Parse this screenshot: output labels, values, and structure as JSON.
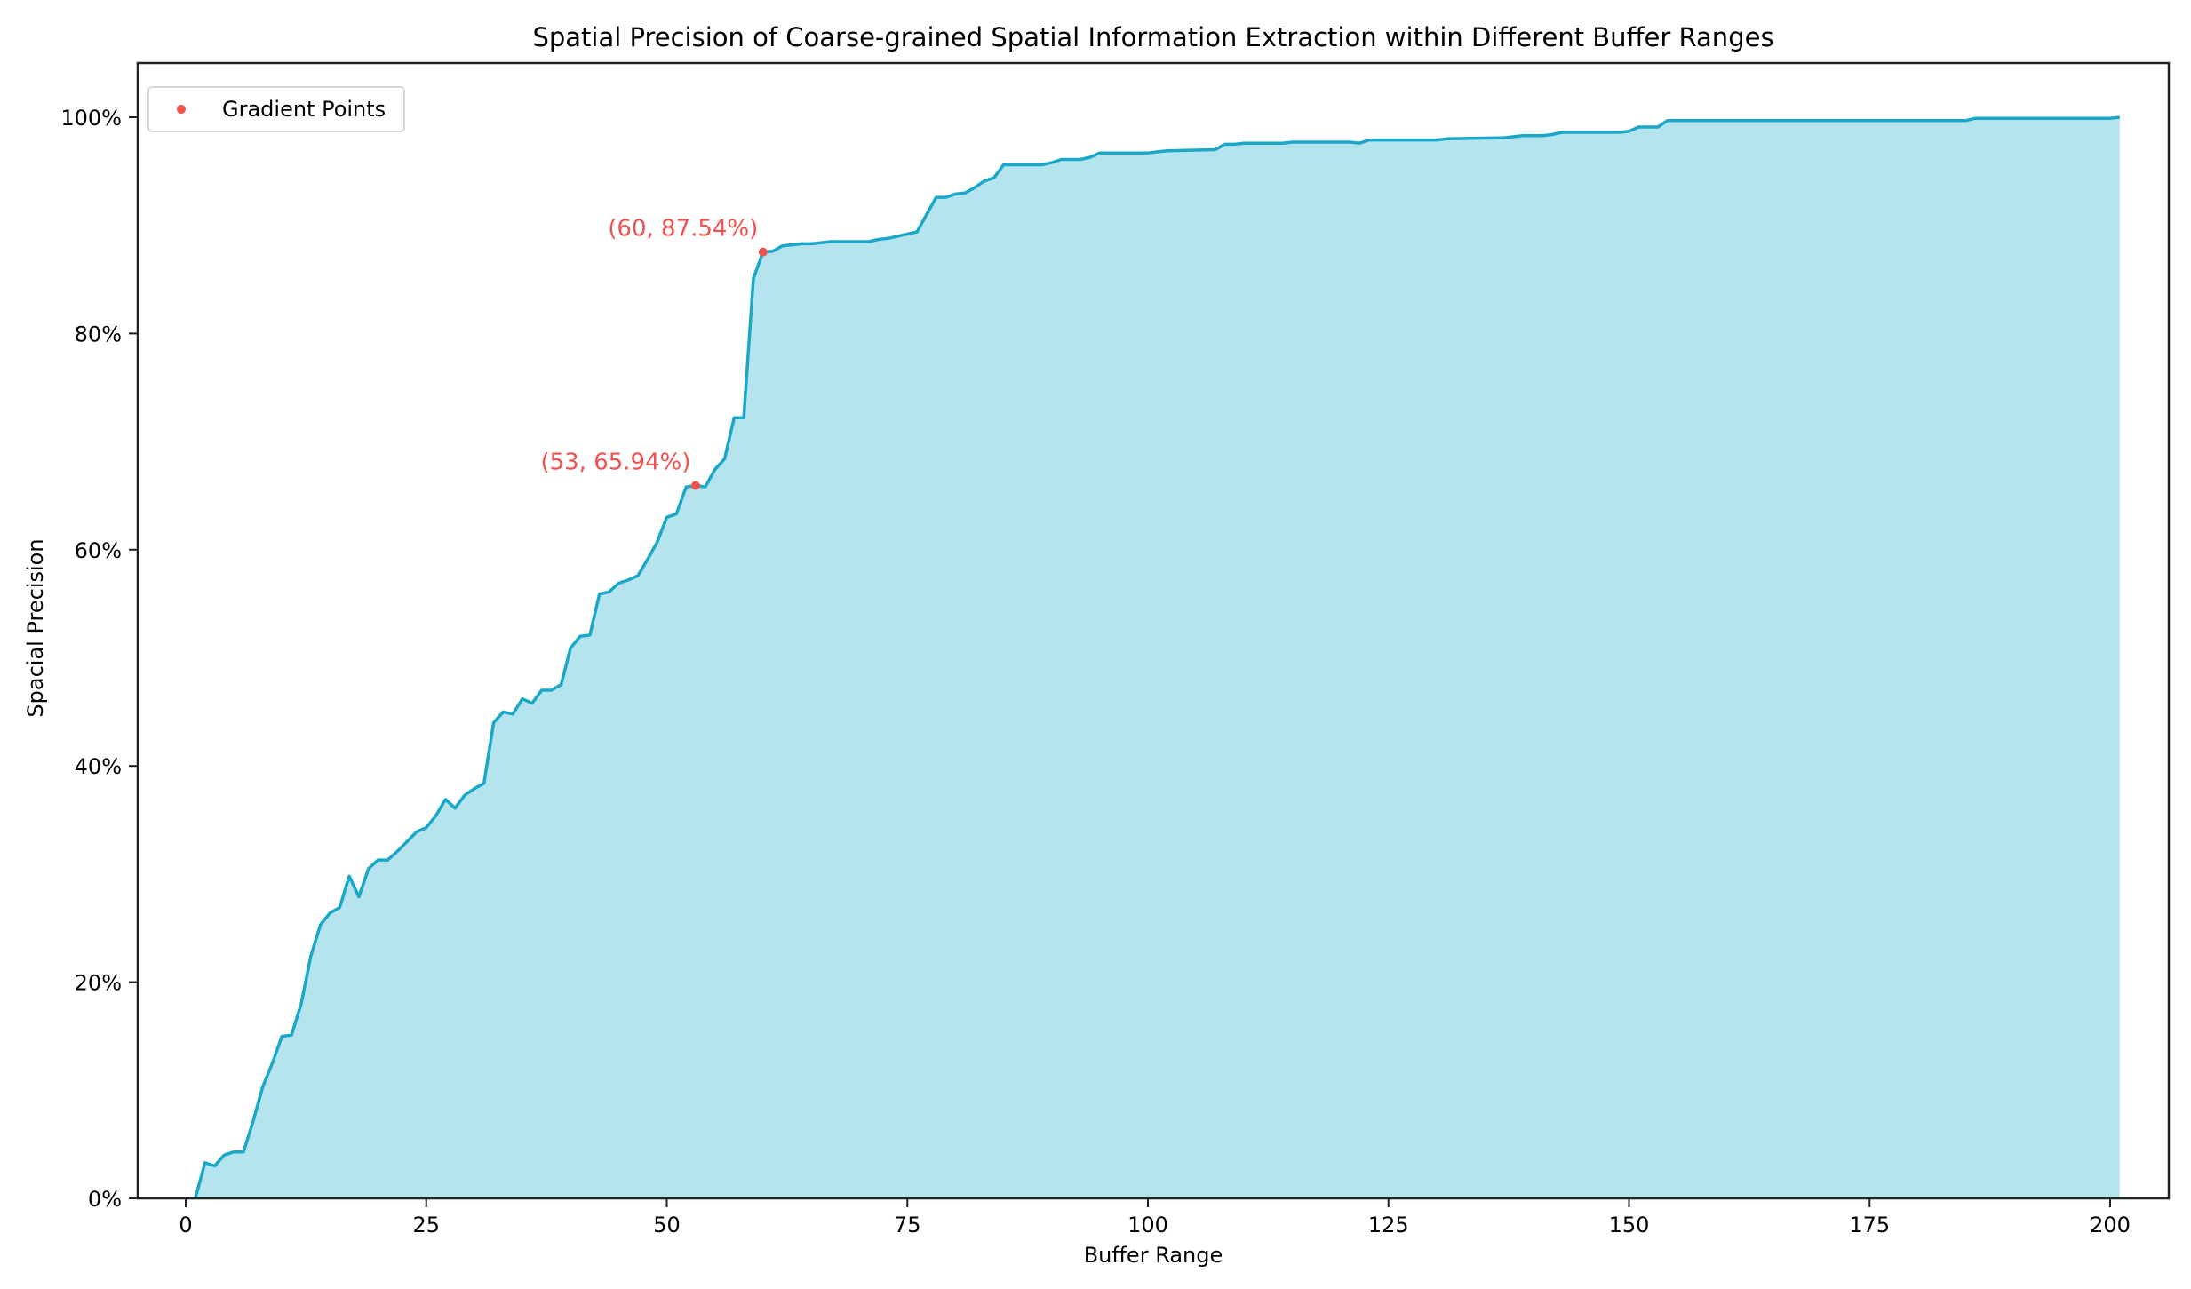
{
  "chart_data": {
    "type": "area",
    "title": "Spatial Precision of Coarse-grained Spatial Information Extraction within Different Buffer Ranges",
    "xlabel": "Buffer Range",
    "ylabel": "Spacial Precision",
    "xlim": [
      -5,
      206
    ],
    "ylim": [
      0,
      105
    ],
    "x_ticks": [
      0,
      25,
      50,
      75,
      100,
      125,
      150,
      175,
      200
    ],
    "x_tick_labels": [
      "0",
      "25",
      "50",
      "75",
      "100",
      "125",
      "150",
      "175",
      "200"
    ],
    "y_ticks": [
      0,
      20,
      40,
      60,
      80,
      100
    ],
    "y_tick_labels": [
      "0%",
      "20%",
      "40%",
      "60%",
      "80%",
      "100%"
    ],
    "grid": false,
    "legend": {
      "position": "upper left",
      "entries": [
        "Gradient Points"
      ]
    },
    "series": [
      {
        "name": "Spatial Precision",
        "x": [
          1,
          2,
          3,
          4,
          5,
          6,
          7,
          8,
          9,
          10,
          11,
          12,
          13,
          14,
          15,
          16,
          17,
          18,
          19,
          20,
          21,
          22,
          23,
          24,
          25,
          26,
          27,
          28,
          29,
          30,
          31,
          32,
          33,
          34,
          35,
          36,
          37,
          38,
          39,
          40,
          41,
          42,
          43,
          44,
          45,
          46,
          47,
          48,
          49,
          50,
          51,
          52,
          53,
          54,
          55,
          56,
          57,
          58,
          59,
          60,
          61,
          62,
          63,
          64,
          65,
          66,
          67,
          70,
          71,
          72,
          73,
          74,
          75,
          76,
          77,
          78,
          79,
          80,
          81,
          82,
          83,
          84,
          85,
          88,
          89,
          90,
          91,
          93,
          94,
          95,
          100,
          101,
          102,
          107,
          108,
          109,
          110,
          114,
          115,
          121,
          122,
          123,
          130,
          131,
          137,
          138,
          139,
          141,
          142,
          143,
          149,
          150,
          151,
          153,
          154,
          185,
          186,
          199,
          200,
          201
        ],
        "values": [
          0,
          3.3,
          3.0,
          4.0,
          4.3,
          4.3,
          7.1,
          10.3,
          12.5,
          15.0,
          15.1,
          18.0,
          22.4,
          25.3,
          26.4,
          26.9,
          29.8,
          27.9,
          30.5,
          31.3,
          31.3,
          32.1,
          33.0,
          33.9,
          34.3,
          35.4,
          36.9,
          36.1,
          37.3,
          37.9,
          38.4,
          44.0,
          45.0,
          44.8,
          46.2,
          45.8,
          47.0,
          47.0,
          47.5,
          50.9,
          52.0,
          52.1,
          55.9,
          56.1,
          56.9,
          57.2,
          57.6,
          59.1,
          60.7,
          63.0,
          63.3,
          65.8,
          65.94,
          65.8,
          67.4,
          68.4,
          72.2,
          72.2,
          85.1,
          87.54,
          87.6,
          88.1,
          88.2,
          88.3,
          88.3,
          88.4,
          88.5,
          88.5,
          88.5,
          88.7,
          88.8,
          89.0,
          89.2,
          89.4,
          91.0,
          92.6,
          92.6,
          92.9,
          93.0,
          93.5,
          94.1,
          94.4,
          95.6,
          95.6,
          95.6,
          95.8,
          96.1,
          96.1,
          96.3,
          96.7,
          96.7,
          96.8,
          96.9,
          97.0,
          97.5,
          97.5,
          97.6,
          97.6,
          97.7,
          97.7,
          97.6,
          97.9,
          97.9,
          98.0,
          98.1,
          98.2,
          98.3,
          98.3,
          98.4,
          98.6,
          98.6,
          98.7,
          99.1,
          99.1,
          99.7,
          99.7,
          99.9,
          99.9,
          99.9,
          100.0
        ]
      },
      {
        "name": "Gradient Points",
        "type": "scatter",
        "x": [
          53,
          60
        ],
        "values": [
          65.94,
          87.54
        ]
      }
    ],
    "annotations": [
      {
        "text": "(53, 65.94%)",
        "x": 53,
        "y": 65.94
      },
      {
        "text": "(60, 87.54%)",
        "x": 60,
        "y": 87.54
      }
    ],
    "colors": {
      "line": "#1aa7c8",
      "fill": "#b5e4ef",
      "points": "#f2524e",
      "annotation": "#f2524e"
    }
  }
}
